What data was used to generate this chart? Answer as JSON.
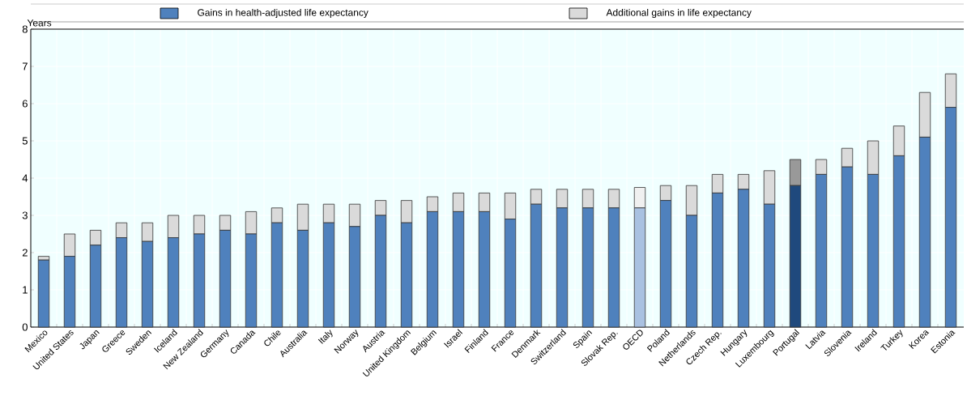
{
  "chart_data": {
    "type": "bar",
    "stacked": true,
    "ylabel": "Years",
    "categories": [
      "Mexico",
      "United States",
      "Japan",
      "Greece",
      "Sweden",
      "Iceland",
      "New Zealand",
      "Germany",
      "Canada",
      "Chile",
      "Australia",
      "Italy",
      "Norway",
      "Austria",
      "United Kingdom",
      "Belgium",
      "Israel",
      "Finland",
      "France",
      "Denmark",
      "Switzerland",
      "Spain",
      "Slovak Rep.",
      "OECD",
      "Poland",
      "Netherlands",
      "Czech Rep.",
      "Hungary",
      "Luxembourg",
      "Portugal",
      "Latvia",
      "Slovenia",
      "Ireland",
      "Turkey",
      "Korea",
      "Estonia"
    ],
    "series": [
      {
        "name": "Gains in health-adjusted life expectancy",
        "color": "#4f81bd",
        "colors": [
          "#4f81bd",
          "#4f81bd",
          "#4f81bd",
          "#4f81bd",
          "#4f81bd",
          "#4f81bd",
          "#4f81bd",
          "#4f81bd",
          "#4f81bd",
          "#4f81bd",
          "#4f81bd",
          "#4f81bd",
          "#4f81bd",
          "#4f81bd",
          "#4f81bd",
          "#4f81bd",
          "#4f81bd",
          "#4f81bd",
          "#4f81bd",
          "#4f81bd",
          "#4f81bd",
          "#4f81bd",
          "#4f81bd",
          "#a9c1e1",
          "#4f81bd",
          "#4f81bd",
          "#4f81bd",
          "#4f81bd",
          "#4f81bd",
          "#1f497d",
          "#4f81bd",
          "#4f81bd",
          "#4f81bd",
          "#4f81bd",
          "#4f81bd",
          "#4f81bd"
        ],
        "values": [
          1.8,
          1.9,
          2.2,
          2.4,
          2.3,
          2.4,
          2.5,
          2.6,
          2.5,
          2.8,
          2.6,
          2.8,
          2.7,
          3.0,
          2.8,
          3.1,
          3.1,
          3.1,
          2.9,
          3.3,
          3.2,
          3.2,
          3.2,
          3.2,
          3.4,
          3.0,
          3.6,
          3.7,
          3.3,
          3.8,
          4.1,
          4.3,
          4.1,
          4.6,
          5.1,
          5.9
        ]
      },
      {
        "name": "Additional gains in life expectancy",
        "color": "#dadada",
        "colors": [
          "#dadada",
          "#dadada",
          "#dadada",
          "#dadada",
          "#dadada",
          "#dadada",
          "#dadada",
          "#dadada",
          "#dadada",
          "#dadada",
          "#dadada",
          "#dadada",
          "#dadada",
          "#dadada",
          "#dadada",
          "#dadada",
          "#dadada",
          "#dadada",
          "#dadada",
          "#dadada",
          "#dadada",
          "#dadada",
          "#dadada",
          "#f0f0f0",
          "#dadada",
          "#dadada",
          "#dadada",
          "#dadada",
          "#dadada",
          "#999999",
          "#dadada",
          "#dadada",
          "#dadada",
          "#dadada",
          "#dadada",
          "#dadada"
        ],
        "values": [
          0.1,
          0.6,
          0.4,
          0.4,
          0.5,
          0.6,
          0.5,
          0.4,
          0.6,
          0.4,
          0.7,
          0.5,
          0.6,
          0.4,
          0.6,
          0.4,
          0.5,
          0.5,
          0.7,
          0.4,
          0.5,
          0.5,
          0.5,
          0.55,
          0.4,
          0.8,
          0.5,
          0.4,
          0.9,
          0.7,
          0.4,
          0.5,
          0.9,
          0.8,
          1.2,
          0.9
        ]
      }
    ],
    "ylim": [
      0,
      8
    ],
    "yticks": [
      0,
      1,
      2,
      3,
      4,
      5,
      6,
      7,
      8
    ],
    "grid": true,
    "legend": "top"
  }
}
